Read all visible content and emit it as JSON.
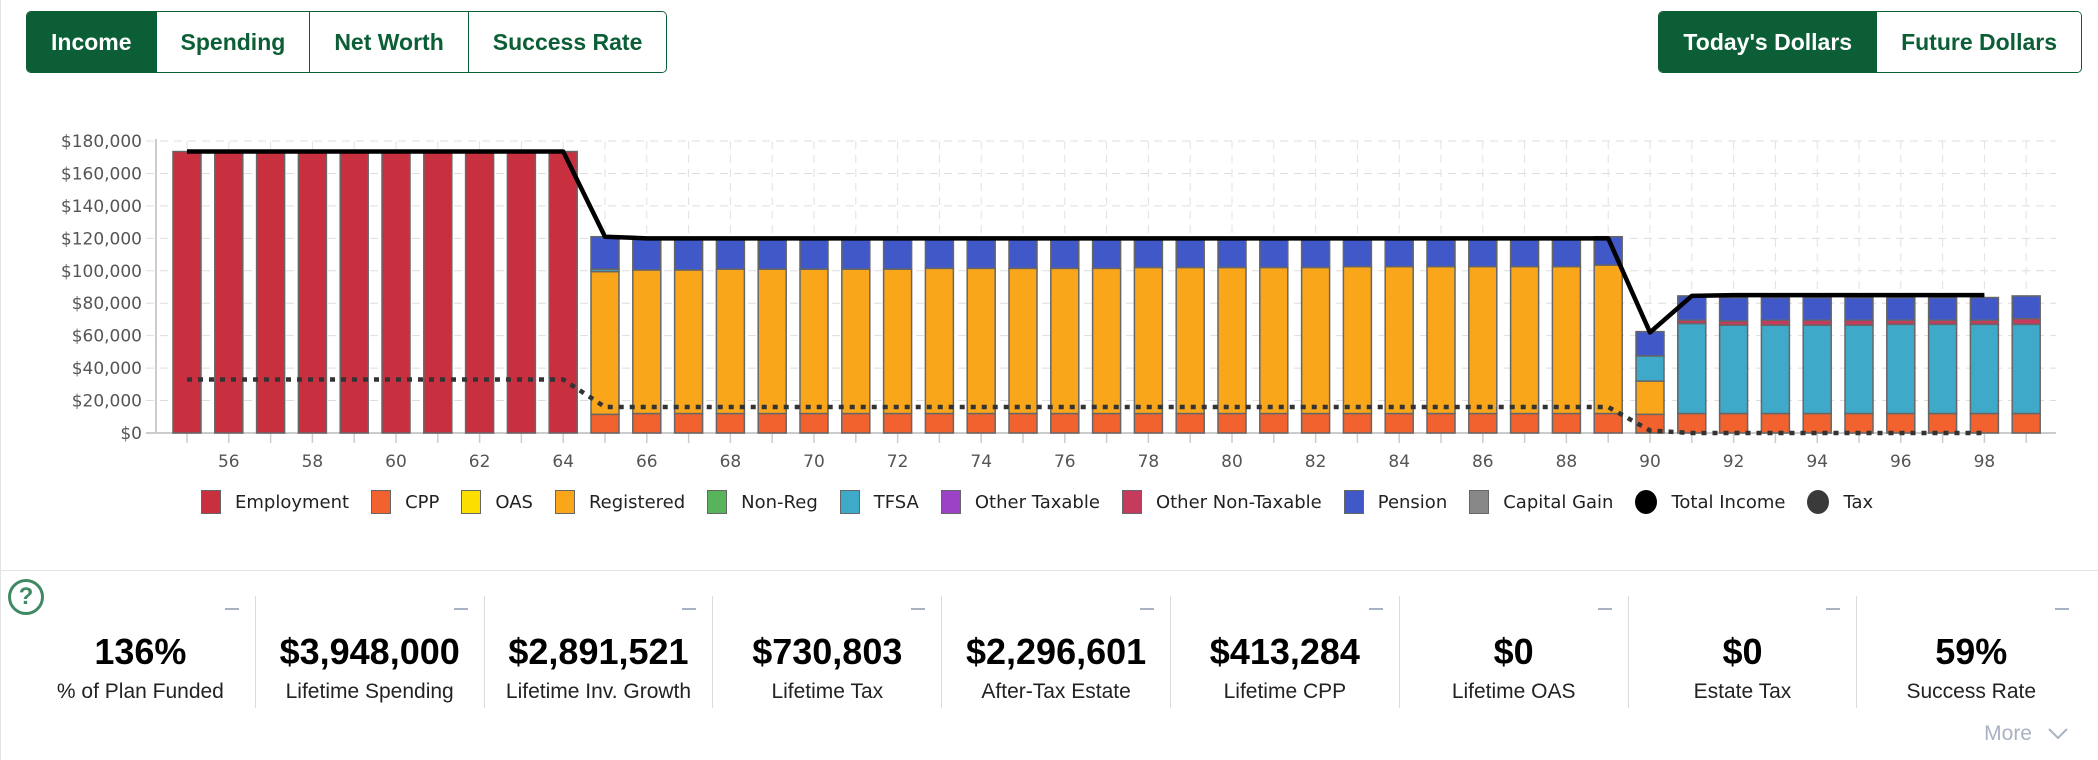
{
  "tabs": [
    {
      "label": "Income",
      "active": true
    },
    {
      "label": "Spending",
      "active": false
    },
    {
      "label": "Net Worth",
      "active": false
    },
    {
      "label": "Success Rate",
      "active": false
    }
  ],
  "dollar_toggle": [
    {
      "label": "Today's Dollars",
      "active": true
    },
    {
      "label": "Future Dollars",
      "active": false
    }
  ],
  "chart_data": {
    "type": "bar",
    "stacked": true,
    "title": "",
    "xlabel": "",
    "ylabel": "",
    "ylim": [
      0,
      180000
    ],
    "yticks": [
      "$0",
      "$20,000",
      "$40,000",
      "$60,000",
      "$80,000",
      "$100,000",
      "$120,000",
      "$140,000",
      "$160,000",
      "$180,000"
    ],
    "xticks": [
      "56",
      "58",
      "60",
      "62",
      "64",
      "66",
      "68",
      "70",
      "72",
      "74",
      "76",
      "78",
      "80",
      "82",
      "84",
      "86",
      "88",
      "90",
      "92",
      "94",
      "96",
      "98"
    ],
    "grid": true,
    "legend_position": "bottom",
    "x": [
      55,
      56,
      57,
      58,
      59,
      60,
      61,
      62,
      63,
      64,
      65,
      66,
      67,
      68,
      69,
      70,
      71,
      72,
      73,
      74,
      75,
      76,
      77,
      78,
      79,
      80,
      81,
      82,
      83,
      84,
      85,
      86,
      87,
      88,
      89,
      90,
      91,
      92,
      93,
      94,
      95,
      96,
      97,
      98,
      99
    ],
    "series": [
      {
        "name": "Employment",
        "color": "#c83040",
        "values": [
          173500,
          173500,
          173500,
          173500,
          173500,
          173500,
          173500,
          173500,
          173500,
          173500,
          0,
          0,
          0,
          0,
          0,
          0,
          0,
          0,
          0,
          0,
          0,
          0,
          0,
          0,
          0,
          0,
          0,
          0,
          0,
          0,
          0,
          0,
          0,
          0,
          0,
          0,
          0,
          0,
          0,
          0,
          0,
          0,
          0,
          0,
          0
        ]
      },
      {
        "name": "CPP",
        "color": "#f2622e",
        "values": [
          0,
          0,
          0,
          0,
          0,
          0,
          0,
          0,
          0,
          0,
          11500,
          12000,
          12000,
          12000,
          12000,
          12000,
          12000,
          12000,
          12000,
          12000,
          12000,
          12000,
          12000,
          12000,
          12000,
          12000,
          12000,
          12000,
          12000,
          12000,
          12000,
          12000,
          12000,
          12000,
          12000,
          11500,
          12000,
          12000,
          12000,
          12000,
          12000,
          12000,
          12000,
          12000,
          12000
        ]
      },
      {
        "name": "OAS",
        "color": "#fadf00",
        "values": [
          0,
          0,
          0,
          0,
          0,
          0,
          0,
          0,
          0,
          0,
          0,
          0,
          0,
          0,
          0,
          0,
          0,
          0,
          0,
          0,
          0,
          0,
          0,
          0,
          0,
          0,
          0,
          0,
          0,
          0,
          0,
          0,
          0,
          0,
          0,
          0,
          0,
          0,
          0,
          0,
          0,
          0,
          0,
          0,
          0
        ]
      },
      {
        "name": "Registered",
        "color": "#f9a61a",
        "values": [
          0,
          0,
          0,
          0,
          0,
          0,
          0,
          0,
          0,
          0,
          88000,
          88500,
          88500,
          89000,
          89000,
          89000,
          89000,
          89000,
          89500,
          89500,
          89500,
          89500,
          89500,
          90000,
          90000,
          90000,
          90000,
          90000,
          90500,
          90500,
          90500,
          90500,
          90500,
          90500,
          91500,
          20500,
          0,
          0,
          0,
          0,
          0,
          0,
          0,
          0,
          0
        ]
      },
      {
        "name": "Non-Reg",
        "color": "#57b45a",
        "values": [
          0,
          0,
          0,
          0,
          0,
          0,
          0,
          0,
          0,
          0,
          0,
          0,
          0,
          0,
          0,
          0,
          0,
          0,
          0,
          0,
          0,
          0,
          0,
          0,
          0,
          0,
          0,
          0,
          0,
          0,
          0,
          0,
          0,
          0,
          0,
          0,
          0,
          0,
          0,
          0,
          0,
          0,
          0,
          0,
          0
        ]
      },
      {
        "name": "TFSA",
        "color": "#3fa9c9",
        "values": [
          0,
          0,
          0,
          0,
          0,
          0,
          0,
          0,
          0,
          0,
          1500,
          0,
          0,
          0,
          0,
          0,
          0,
          0,
          0,
          0,
          0,
          0,
          0,
          0,
          0,
          0,
          0,
          0,
          0,
          0,
          0,
          0,
          0,
          0,
          0,
          15500,
          55500,
          54500,
          54500,
          54500,
          54500,
          55000,
          55000,
          55000,
          55000
        ]
      },
      {
        "name": "Other Taxable",
        "color": "#9b42c7",
        "values": [
          0,
          0,
          0,
          0,
          0,
          0,
          0,
          0,
          0,
          0,
          0,
          0,
          0,
          0,
          0,
          0,
          0,
          0,
          0,
          0,
          0,
          0,
          0,
          0,
          0,
          0,
          0,
          0,
          0,
          0,
          0,
          0,
          0,
          0,
          0,
          0,
          0,
          0,
          0,
          0,
          0,
          0,
          0,
          0,
          0
        ]
      },
      {
        "name": "Other Non-Taxable",
        "color": "#c63a5e",
        "values": [
          0,
          0,
          0,
          0,
          0,
          0,
          0,
          0,
          0,
          0,
          0,
          0,
          0,
          0,
          0,
          0,
          0,
          0,
          0,
          0,
          0,
          0,
          0,
          0,
          0,
          0,
          0,
          0,
          0,
          0,
          0,
          0,
          0,
          0,
          0,
          0,
          2000,
          2500,
          3000,
          3000,
          3000,
          2500,
          2500,
          2500,
          3500
        ]
      },
      {
        "name": "Pension",
        "color": "#4158c8",
        "values": [
          0,
          0,
          0,
          0,
          0,
          0,
          0,
          0,
          0,
          0,
          20000,
          19500,
          19500,
          18500,
          18500,
          18500,
          18500,
          18500,
          18000,
          18000,
          18000,
          18000,
          18000,
          17500,
          17500,
          17500,
          17500,
          17500,
          17000,
          17000,
          17000,
          17000,
          17000,
          17000,
          17500,
          15000,
          15000,
          14500,
          14000,
          14000,
          14000,
          14000,
          14000,
          14000,
          14000
        ]
      },
      {
        "name": "Capital Gain",
        "color": "#888888",
        "values": [
          0,
          0,
          0,
          0,
          0,
          0,
          0,
          0,
          0,
          0,
          0,
          0,
          0,
          0,
          0,
          0,
          0,
          0,
          0,
          0,
          0,
          0,
          0,
          0,
          0,
          0,
          0,
          0,
          0,
          0,
          0,
          0,
          0,
          0,
          0,
          0,
          0,
          0,
          0,
          0,
          0,
          0,
          0,
          0,
          0
        ]
      }
    ],
    "lines": [
      {
        "name": "Total Income",
        "color": "#000000",
        "style": "solid",
        "values": [
          173500,
          173500,
          173500,
          173500,
          173500,
          173500,
          173500,
          173500,
          173500,
          173500,
          121000,
          120000,
          120000,
          120000,
          120000,
          120000,
          120000,
          120000,
          120000,
          120000,
          120000,
          120000,
          120000,
          120000,
          120000,
          120000,
          120000,
          120000,
          120000,
          120000,
          120000,
          120000,
          120000,
          120000,
          120000,
          62000,
          84500,
          85000,
          85000,
          85000,
          85000,
          85000,
          85000,
          85000,
          null
        ]
      },
      {
        "name": "Tax",
        "color": "#333333",
        "style": "dotted",
        "values": [
          33000,
          33000,
          33000,
          33000,
          33000,
          33000,
          33000,
          33000,
          33000,
          33000,
          16000,
          16000,
          16000,
          16000,
          16000,
          16000,
          16000,
          16000,
          16000,
          16000,
          16000,
          16000,
          16000,
          16000,
          16000,
          16000,
          16000,
          16000,
          16000,
          16000,
          16000,
          16000,
          16000,
          16000,
          16000,
          1500,
          0,
          0,
          0,
          0,
          0,
          0,
          0,
          0,
          null
        ]
      }
    ]
  },
  "legend": [
    {
      "label": "Employment",
      "color": "#c83040",
      "shape": "square"
    },
    {
      "label": "CPP",
      "color": "#f2622e",
      "shape": "square"
    },
    {
      "label": "OAS",
      "color": "#fadf00",
      "shape": "square"
    },
    {
      "label": "Registered",
      "color": "#f9a61a",
      "shape": "square"
    },
    {
      "label": "Non-Reg",
      "color": "#57b45a",
      "shape": "square"
    },
    {
      "label": "TFSA",
      "color": "#3fa9c9",
      "shape": "square"
    },
    {
      "label": "Other Taxable",
      "color": "#9b42c7",
      "shape": "square"
    },
    {
      "label": "Other Non-Taxable",
      "color": "#c63a5e",
      "shape": "square"
    },
    {
      "label": "Pension",
      "color": "#4158c8",
      "shape": "square"
    },
    {
      "label": "Capital Gain",
      "color": "#888888",
      "shape": "square"
    },
    {
      "label": "Total Income",
      "color": "#000000",
      "shape": "circle"
    },
    {
      "label": "Tax",
      "color": "#3a3a3a",
      "shape": "circle"
    }
  ],
  "help_icon": "question-circle-icon",
  "stats": [
    {
      "value": "136%",
      "label": "% of Plan Funded"
    },
    {
      "value": "$3,948,000",
      "label": "Lifetime Spending"
    },
    {
      "value": "$2,891,521",
      "label": "Lifetime Inv. Growth"
    },
    {
      "value": "$730,803",
      "label": "Lifetime Tax"
    },
    {
      "value": "$2,296,601",
      "label": "After-Tax Estate"
    },
    {
      "value": "$413,284",
      "label": "Lifetime CPP"
    },
    {
      "value": "$0",
      "label": "Lifetime OAS"
    },
    {
      "value": "$0",
      "label": "Estate Tax"
    },
    {
      "value": "59%",
      "label": "Success Rate"
    }
  ],
  "more_label": "More",
  "brand_color": "#0b5e35"
}
